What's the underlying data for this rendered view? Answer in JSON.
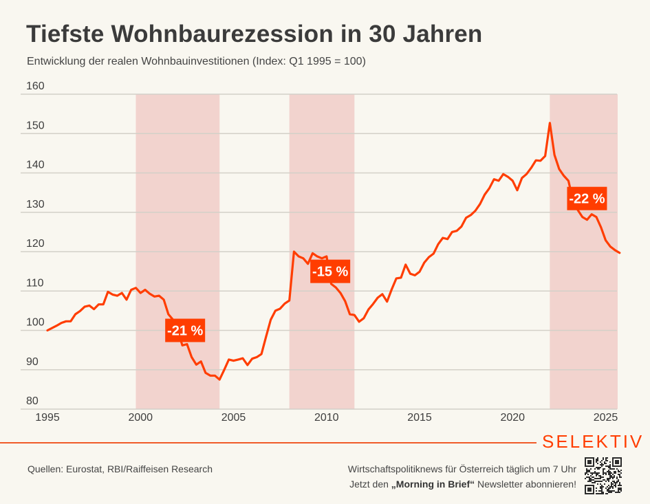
{
  "header": {
    "title": "Tiefste Wohnbaurezession in 30 Jahren",
    "subtitle": "Entwicklung der realen Wohnbauinvestitionen (Index: Q1 1995 = 100)"
  },
  "chart_data": {
    "type": "line",
    "title": "Tiefste Wohnbaurezession in 30 Jahren",
    "subtitle": "Entwicklung der realen Wohnbauinvestitionen (Index: Q1 1995 = 100)",
    "xlabel": "",
    "ylabel": "",
    "xlim": [
      1995,
      2025.75
    ],
    "ylim": [
      80,
      160
    ],
    "grid": true,
    "yticks": [
      "80",
      "90",
      "100",
      "110",
      "120",
      "130",
      "140",
      "150",
      "160"
    ],
    "yticks_values": [
      80,
      90,
      100,
      110,
      120,
      130,
      140,
      150,
      160
    ],
    "xticks": [
      "1995",
      "2000",
      "2005",
      "2010",
      "2015",
      "2020",
      "2025"
    ],
    "xticks_values": [
      1995,
      2000,
      2005,
      2010,
      2015,
      2020,
      2025
    ],
    "colors": {
      "line": "#ff3d00",
      "shade": "#f2d3ce",
      "grid": "#d3d0c8",
      "label_bg": "#ff3d00"
    },
    "recession_periods": [
      {
        "start": 1999.75,
        "end": 2004.25
      },
      {
        "start": 2008.0,
        "end": 2011.5
      },
      {
        "start": 2022.0,
        "end": 2025.75
      }
    ],
    "annotations": [
      {
        "text": "-21 %",
        "x": 2002.4,
        "y": 100
      },
      {
        "text": "-15 %",
        "x": 2010.2,
        "y": 115
      },
      {
        "text": "-22 %",
        "x": 2024.0,
        "y": 133.5
      }
    ],
    "series": [
      {
        "name": "Reale Wohnbauinvestitionen",
        "x": [
          1995.0,
          1995.5,
          1995.75,
          1996.0,
          1996.25,
          1996.5,
          1996.75,
          1997.0,
          1997.25,
          1997.5,
          1997.75,
          1998.0,
          1998.25,
          1998.5,
          1998.75,
          1999.0,
          1999.25,
          1999.5,
          1999.75,
          2000.0,
          2000.25,
          2000.5,
          2000.75,
          2001.0,
          2001.25,
          2001.5,
          2001.75,
          2002.0,
          2002.25,
          2002.5,
          2002.75,
          2003.0,
          2003.25,
          2003.5,
          2003.75,
          2004.0,
          2004.25,
          2004.5,
          2004.75,
          2005.0,
          2005.25,
          2005.5,
          2005.75,
          2006.0,
          2006.25,
          2006.5,
          2006.75,
          2007.0,
          2007.25,
          2007.5,
          2007.75,
          2008.0,
          2008.25,
          2008.5,
          2008.75,
          2009.0,
          2009.25,
          2009.5,
          2009.75,
          2010.0,
          2010.25,
          2010.5,
          2010.75,
          2011.0,
          2011.25,
          2011.5,
          2011.75,
          2012.0,
          2012.25,
          2012.5,
          2012.75,
          2013.0,
          2013.25,
          2013.5,
          2013.75,
          2014.0,
          2014.25,
          2014.5,
          2014.75,
          2015.0,
          2015.25,
          2015.5,
          2015.75,
          2016.0,
          2016.25,
          2016.5,
          2016.75,
          2017.0,
          2017.25,
          2017.5,
          2017.75,
          2018.0,
          2018.25,
          2018.5,
          2018.75,
          2019.0,
          2019.25,
          2019.5,
          2019.75,
          2020.0,
          2020.25,
          2020.5,
          2020.75,
          2021.0,
          2021.25,
          2021.5,
          2021.75,
          2022.0,
          2022.25,
          2022.5,
          2022.75,
          2023.0,
          2023.25,
          2023.5,
          2023.75,
          2024.0,
          2024.25,
          2024.5,
          2024.75,
          2025.0,
          2025.25,
          2025.5,
          2025.75
        ],
        "values": [
          100.0,
          101.2,
          101.9,
          102.3,
          102.3,
          104.1,
          104.9,
          106.0,
          106.3,
          105.4,
          106.6,
          106.6,
          109.8,
          109.1,
          108.8,
          109.5,
          107.8,
          110.3,
          110.8,
          109.5,
          110.3,
          109.3,
          108.6,
          108.8,
          107.8,
          104.1,
          102.7,
          100.0,
          96.2,
          96.5,
          93.2,
          91.3,
          92.1,
          89.2,
          88.5,
          88.5,
          87.5,
          90.0,
          92.6,
          92.3,
          92.6,
          92.9,
          91.2,
          92.8,
          93.2,
          94.0,
          98.4,
          102.7,
          105.0,
          105.5,
          106.8,
          107.6,
          120.0,
          118.8,
          118.3,
          116.9,
          119.6,
          118.8,
          118.3,
          118.8,
          111.8,
          110.9,
          109.5,
          107.4,
          104.1,
          103.9,
          102.2,
          103.1,
          105.3,
          106.7,
          108.3,
          109.2,
          107.3,
          110.4,
          113.2,
          113.4,
          116.7,
          114.4,
          114.0,
          114.9,
          117.2,
          118.6,
          119.5,
          121.9,
          123.5,
          123.2,
          125.0,
          125.3,
          126.4,
          128.6,
          129.3,
          130.4,
          132.1,
          134.5,
          136.1,
          138.4,
          138.0,
          139.7,
          139.0,
          138.0,
          135.6,
          138.7,
          139.7,
          141.3,
          143.2,
          143.1,
          144.3,
          152.7,
          144.6,
          141.0,
          139.3,
          138.0,
          132.9,
          130.6,
          128.8,
          128.1,
          129.5,
          128.8,
          126.2,
          122.9,
          121.3,
          120.4,
          119.7
        ]
      }
    ]
  },
  "footer": {
    "brand": "SELEKTIV",
    "source": "Quellen: Eurostat, RBI/Raiffeisen Research",
    "promo_line1": "Wirtschaftspolitiknews für Österreich täglich um 7 Uhr",
    "promo_line2_prefix": "Jetzt den ",
    "promo_line2_bold": "„Morning in Brief“",
    "promo_line2_suffix": " Newsletter abonnieren!"
  }
}
